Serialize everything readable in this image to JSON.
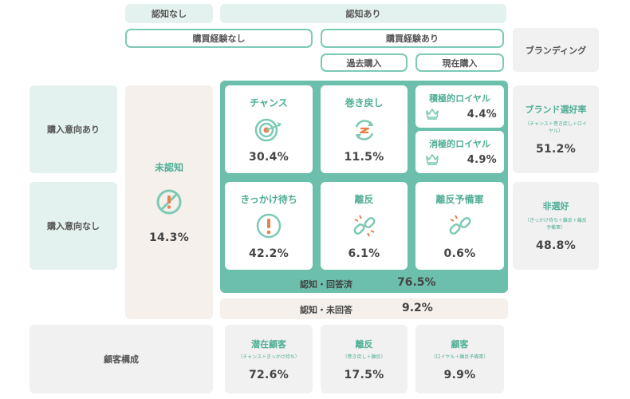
{
  "header": {
    "unaware": "認知なし",
    "aware": "認知あり",
    "no_purchase_exp": "購買経験なし",
    "has_purchase_exp": "購買経験あり",
    "past_purchase": "過去購入",
    "current_purchase": "現在購入",
    "branding": "ブランディング"
  },
  "rows": {
    "with_intent": "購入意向あり",
    "without_intent": "購入意向なし",
    "composition": "顧客構成"
  },
  "unaware_block": {
    "label": "未認知",
    "value": "14.3%",
    "icon": "no-entry-exclamation-icon"
  },
  "cards": {
    "chance": {
      "title": "チャンス",
      "value": "30.4%",
      "icon": "target-icon"
    },
    "rewind": {
      "title": "巻き戻し",
      "value": "11.5%",
      "icon": "rewind-cycle-icon"
    },
    "active_loyal": {
      "title": "積極的ロイヤル",
      "value": "4.4%",
      "icon": "crown-icon"
    },
    "passive_loyal": {
      "title": "消極的ロイヤル",
      "value": "4.9%",
      "icon": "crown-icon"
    },
    "waiting": {
      "title": "きっかけ待ち",
      "value": "42.2%",
      "icon": "exclamation-circle-icon"
    },
    "churn": {
      "title": "離反",
      "value": "6.1%",
      "icon": "broken-chain-icon"
    },
    "churn_reserve": {
      "title": "離反予備軍",
      "value": "0.6%",
      "icon": "broken-chain-icon"
    }
  },
  "aware_answered": {
    "label": "認知・回答済",
    "value": "76.5%"
  },
  "aware_unanswered": {
    "label": "認知・未回答",
    "value": "9.2%"
  },
  "branding_cells": {
    "preferred": {
      "title": "ブランド選好率",
      "note": "（チャンス＋巻き戻し＋ロイヤル）",
      "value": "51.2%"
    },
    "non_preferred": {
      "title": "非選好",
      "note": "（きっかけ待ち＋離反＋離反予備軍）",
      "value": "48.8%"
    }
  },
  "composition": {
    "potential": {
      "title": "潜在顧客",
      "note": "（チャンス＋きっかけ待ち）",
      "value": "72.6%"
    },
    "churn": {
      "title": "離反",
      "note": "（巻き戻し＋離反）",
      "value": "17.5%"
    },
    "customer": {
      "title": "顧客",
      "note": "（ロイヤル＋離反予備軍）",
      "value": "9.9%"
    }
  },
  "colors": {
    "teal": "#6cbfaa",
    "teal_text": "#4eae96",
    "mint": "#e3f2ee",
    "grey": "#f1f1f1",
    "beige": "#f5f0eb",
    "alert_orange": "#e8824a"
  }
}
